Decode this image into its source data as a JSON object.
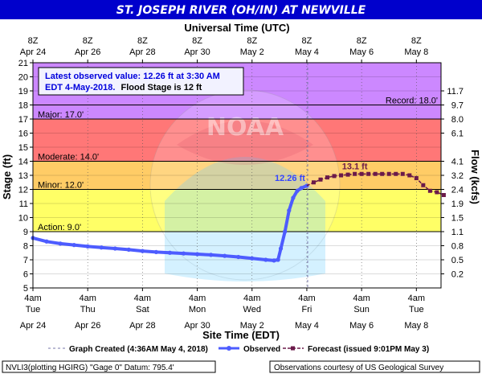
{
  "chart_data": {
    "type": "line",
    "title": "ST. JOSEPH RIVER (OH/IN) AT NEWVILLE",
    "top_axis_label": "Universal Time (UTC)",
    "xlabel": "Site Time (EDT)",
    "ylabel": "Stage (ft)",
    "y2label": "Flow (kcfs)",
    "ylim": [
      5,
      21
    ],
    "y_ticks": [
      5,
      6,
      7,
      8,
      9,
      10,
      11,
      12,
      13,
      14,
      15,
      16,
      17,
      18,
      19,
      20,
      21
    ],
    "x_range_days": [
      0,
      14.9
    ],
    "bottom_ticks": [
      {
        "day": 0,
        "time": "4am",
        "dow": "Tue",
        "date": "Apr 24"
      },
      {
        "day": 2,
        "time": "4am",
        "dow": "Thu",
        "date": "Apr 26"
      },
      {
        "day": 4,
        "time": "4am",
        "dow": "Sat",
        "date": "Apr 28"
      },
      {
        "day": 6,
        "time": "4am",
        "dow": "Mon",
        "date": "Apr 30"
      },
      {
        "day": 8,
        "time": "4am",
        "dow": "Wed",
        "date": "May 2"
      },
      {
        "day": 10,
        "time": "4am",
        "dow": "Fri",
        "date": "May 4"
      },
      {
        "day": 12,
        "time": "4am",
        "dow": "Sun",
        "date": "May 6"
      },
      {
        "day": 14,
        "time": "4am",
        "dow": "Tue",
        "date": "May 8"
      }
    ],
    "top_ticks": [
      {
        "day": 0,
        "time": "8Z",
        "date": "Apr 24"
      },
      {
        "day": 2,
        "time": "8Z",
        "date": "Apr 26"
      },
      {
        "day": 4,
        "time": "8Z",
        "date": "Apr 28"
      },
      {
        "day": 6,
        "time": "8Z",
        "date": "Apr 30"
      },
      {
        "day": 8,
        "time": "8Z",
        "date": "May 2"
      },
      {
        "day": 10,
        "time": "8Z",
        "date": "May 4"
      },
      {
        "day": 12,
        "time": "8Z",
        "date": "May 6"
      },
      {
        "day": 14,
        "time": "8Z",
        "date": "May 8"
      }
    ],
    "flow_ticks": [
      {
        "stage": 6,
        "label": "0.2"
      },
      {
        "stage": 7,
        "label": "0.5"
      },
      {
        "stage": 8,
        "label": "0.8"
      },
      {
        "stage": 9,
        "label": "1.1"
      },
      {
        "stage": 10,
        "label": "1.5"
      },
      {
        "stage": 11,
        "label": "1.9"
      },
      {
        "stage": 12,
        "label": "2.4"
      },
      {
        "stage": 13,
        "label": "3.2"
      },
      {
        "stage": 14,
        "label": "4.1"
      },
      {
        "stage": 16,
        "label": "6.1"
      },
      {
        "stage": 17,
        "label": "8.0"
      },
      {
        "stage": 18,
        "label": "9.7"
      },
      {
        "stage": 19,
        "label": "11.7"
      }
    ],
    "flood_levels": [
      {
        "name": "Action",
        "label": "Action: 9.0'",
        "from": 5,
        "to": 9,
        "color": "#ffffff"
      },
      {
        "name": "Minor",
        "label": "Minor: 12.0'",
        "from": 9,
        "to": 12,
        "color": "#ffff66"
      },
      {
        "name": "Moderate",
        "label": "Moderate: 14.0'",
        "from": 12,
        "to": 14,
        "color": "#ffcc66"
      },
      {
        "name": "Major",
        "label": "Major: 17.0'",
        "from": 14,
        "to": 17,
        "color": "#ff7777"
      },
      {
        "name": "Above Major",
        "label": "",
        "from": 17,
        "to": 21,
        "color": "#cc88ff"
      }
    ],
    "record_label": "Record: 18.0'",
    "record_stage": 18.0,
    "graph_created_day": 10.03,
    "series": [
      {
        "name": "Observed",
        "color": "#4d5cff",
        "points": [
          [
            0.0,
            8.55
          ],
          [
            0.5,
            8.3
          ],
          [
            1.0,
            8.15
          ],
          [
            1.5,
            8.05
          ],
          [
            2.0,
            7.95
          ],
          [
            2.5,
            7.87
          ],
          [
            3.0,
            7.8
          ],
          [
            3.5,
            7.72
          ],
          [
            4.0,
            7.62
          ],
          [
            4.5,
            7.55
          ],
          [
            5.0,
            7.5
          ],
          [
            5.5,
            7.45
          ],
          [
            6.0,
            7.4
          ],
          [
            6.5,
            7.35
          ],
          [
            7.0,
            7.28
          ],
          [
            7.5,
            7.2
          ],
          [
            8.0,
            7.1
          ],
          [
            8.5,
            7.0
          ],
          [
            8.8,
            6.95
          ],
          [
            8.95,
            7.0
          ],
          [
            9.05,
            7.8
          ],
          [
            9.2,
            9.0
          ],
          [
            9.35,
            10.5
          ],
          [
            9.5,
            11.4
          ],
          [
            9.65,
            11.9
          ],
          [
            9.8,
            12.1
          ],
          [
            10.0,
            12.26
          ]
        ]
      },
      {
        "name": "Forecast (issued 9:01PM May 3)",
        "color": "#6b1a4a",
        "points": [
          [
            10.0,
            12.26
          ],
          [
            10.25,
            12.5
          ],
          [
            10.5,
            12.7
          ],
          [
            10.75,
            12.85
          ],
          [
            11.0,
            12.95
          ],
          [
            11.25,
            13.0
          ],
          [
            11.5,
            13.05
          ],
          [
            11.75,
            13.1
          ],
          [
            12.0,
            13.1
          ],
          [
            12.25,
            13.1
          ],
          [
            12.5,
            13.1
          ],
          [
            12.75,
            13.1
          ],
          [
            13.0,
            13.1
          ],
          [
            13.25,
            13.1
          ],
          [
            13.5,
            13.1
          ],
          [
            13.75,
            13.0
          ],
          [
            14.0,
            12.8
          ],
          [
            14.25,
            12.3
          ],
          [
            14.5,
            11.9
          ],
          [
            14.75,
            11.8
          ],
          [
            15.0,
            11.6
          ]
        ]
      }
    ],
    "point_labels": [
      {
        "text": "12.26 ft",
        "day": 10.0,
        "stage": 12.26,
        "color": "#3344ff"
      },
      {
        "text": "13.1 ft",
        "day": 11.75,
        "stage": 13.1,
        "color": "#6b1a4a"
      }
    ],
    "info_box": {
      "line1": "Latest observed value: 12.26 ft at 3:30 AM",
      "line2a": "EDT 4-May-2018.",
      "line2b": "Flood Stage is 12 ft"
    },
    "legend": {
      "graph_created": "Graph Created (4:36AM May 4, 2018)",
      "observed": "Observed",
      "forecast": "Forecast (issued 9:01PM May 3)"
    },
    "footer": {
      "left": "NVLI3(plotting HGIRG) \"Gage 0\" Datum: 795.4'",
      "right": "Observations courtesy of US Geological Survey"
    },
    "colors": {
      "title_bar": "#0000cc",
      "observed": "#4d5cff",
      "forecast": "#6b1a4a",
      "graph_created_line": "#7777aa"
    }
  }
}
